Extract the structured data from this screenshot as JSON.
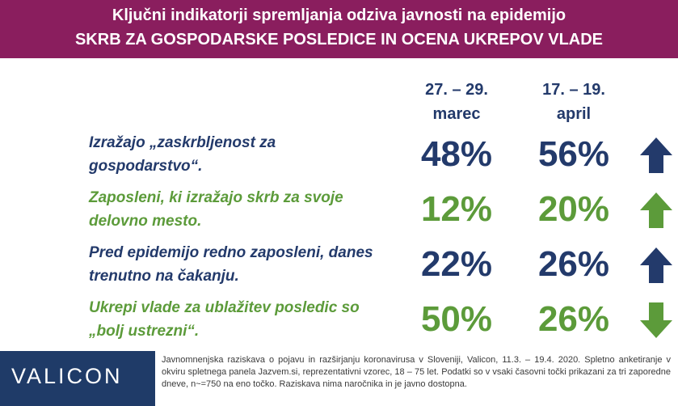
{
  "header": {
    "line1": "Ključni indikatorji spremljanja odziva javnosti na epidemijo",
    "line2": "SKRB ZA GOSPODARSKE POSLEDICE IN OCENA UKREPOV VLADE"
  },
  "columns": [
    {
      "line1": "27. – 29.",
      "line2": "marec"
    },
    {
      "line1": "17. – 19.",
      "line2": "april"
    }
  ],
  "rows": [
    {
      "label_line1": "Izražajo „zaskrbljenost za",
      "label_line2": "gospodarstvo“.",
      "v1": "48%",
      "v2": "56%",
      "trend": "up",
      "color": "#233a6b"
    },
    {
      "label_line1": "Zaposleni, ki izražajo skrb za svoje",
      "label_line2": "delovno mesto.",
      "v1": "12%",
      "v2": "20%",
      "trend": "up",
      "color": "#5c9b3a"
    },
    {
      "label_line1": "Pred epidemijo redno zaposleni, danes",
      "label_line2": "trenutno na čakanju.",
      "v1": "22%",
      "v2": "26%",
      "trend": "up",
      "color": "#233a6b"
    },
    {
      "label_line1": "Ukrepi vlade za ublažitev posledic so",
      "label_line2": "„bolj ustrezni“.",
      "v1": "50%",
      "v2": "26%",
      "trend": "down",
      "color": "#5c9b3a"
    }
  ],
  "footer": {
    "logo": "VALICON",
    "note": "Javnomnenjska raziskava o pojavu in razširjanju koronavirusa v Sloveniji, Valicon, 11.3. – 19.4. 2020. Spletno anketiranje v okviru spletnega panela Jazvem.si, reprezentativni vzorec, 18 – 75 let. Podatki so v vsaki časovni točki prikazani za tri zaporedne dneve, n~=750 na eno točko. Raziskava nima naročnika in je javno dostopna."
  },
  "colors": {
    "header_bg": "#8a1e5e",
    "navy": "#233a6b",
    "green": "#5c9b3a",
    "logo_bg": "#1f3b68"
  },
  "icons": [
    "arrow-up-icon",
    "arrow-up-icon",
    "arrow-up-icon",
    "arrow-down-icon"
  ]
}
